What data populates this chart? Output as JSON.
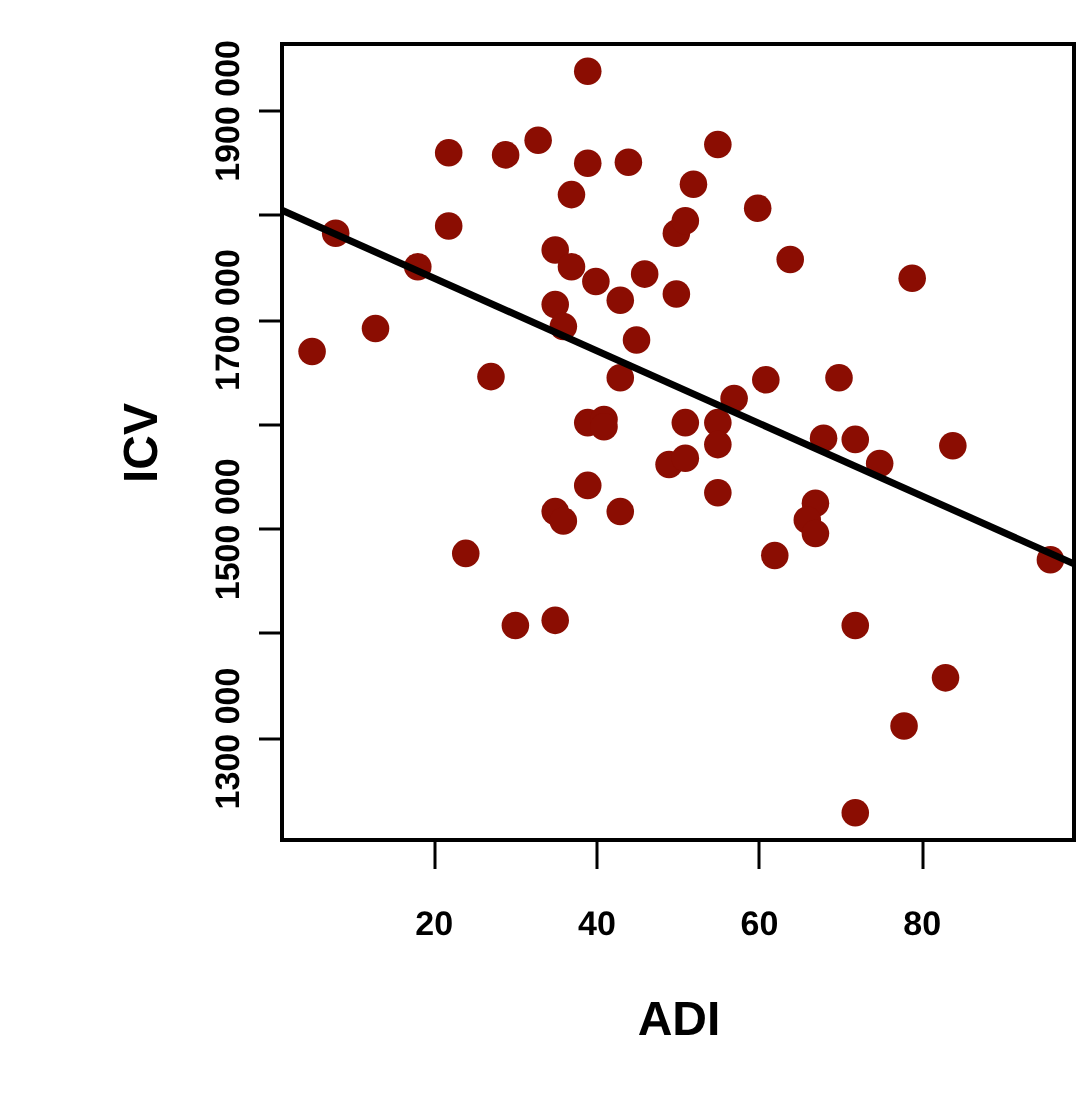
{
  "chart_data": {
    "type": "scatter",
    "xlabel": "ADI",
    "ylabel": "ICV",
    "xlim": [
      1.4,
      98.8
    ],
    "ylim": [
      1202000,
      1963000
    ],
    "xticks": [
      20,
      40,
      60,
      80
    ],
    "yticks": [
      {
        "value": 1300000,
        "label": "1300 000"
      },
      {
        "value": 1400000,
        "label": null
      },
      {
        "value": 1500000,
        "label": "1500 000"
      },
      {
        "value": 1600000,
        "label": null
      },
      {
        "value": 1700000,
        "label": "1700 000"
      },
      {
        "value": 1800000,
        "label": null
      },
      {
        "value": 1900000,
        "label": "1900 000"
      }
    ],
    "grid": false,
    "series": [
      {
        "color": "#8b0d02",
        "marker": "circle",
        "x": [
          5.1,
          8.0,
          12.9,
          18.1,
          21.9,
          21.9,
          27.1,
          28.9,
          32.9,
          39.0,
          39.0,
          37.0,
          35.0,
          37.0,
          40.0,
          35.0,
          36.0,
          43.0,
          44.0,
          46.0,
          45.0,
          43.0,
          39.0,
          41.0,
          41.0,
          49.9,
          49.9,
          51.0,
          52.0,
          55.0,
          59.9,
          63.9,
          78.9,
          57.0,
          60.9,
          69.9,
          51.0,
          55.0,
          55.0,
          68.0,
          71.9,
          74.9,
          83.9,
          49.0,
          51.0,
          39.0,
          55.0,
          35.0,
          36.0,
          43.0,
          67.0,
          66.0,
          67.0,
          24.0,
          62.0,
          95.9,
          30.1,
          35.0,
          71.9,
          83.0,
          77.9,
          71.9
        ],
        "values": [
          1669000,
          1782000,
          1691000,
          1750000,
          1859000,
          1789000,
          1645000,
          1857000,
          1871000,
          1937000,
          1849000,
          1819000,
          1766000,
          1750000,
          1736000,
          1714000,
          1693000,
          1718000,
          1850000,
          1743000,
          1680000,
          1644000,
          1601000,
          1604000,
          1597000,
          1724000,
          1782000,
          1794000,
          1829000,
          1867000,
          1806000,
          1757000,
          1739000,
          1624000,
          1642000,
          1644000,
          1601000,
          1601000,
          1580000,
          1586000,
          1585000,
          1562000,
          1579000,
          1561000,
          1567000,
          1541000,
          1534000,
          1516000,
          1507000,
          1516000,
          1524000,
          1508000,
          1495000,
          1476000,
          1474000,
          1470000,
          1407000,
          1412000,
          1407000,
          1357000,
          1311000,
          1228000
        ]
      },
      {
        "type": "line",
        "marker": "none",
        "color": "#000000",
        "x": [
          1.4,
          98.8
        ],
        "values": [
          1804000,
          1466000
        ]
      }
    ]
  }
}
